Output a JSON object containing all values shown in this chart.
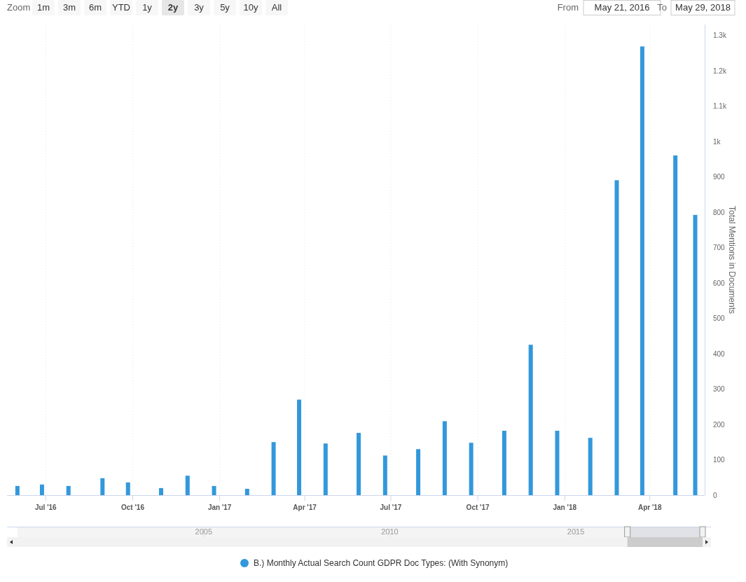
{
  "chart_data": {
    "type": "bar",
    "x": [
      "2016-06-01",
      "2016-06-27",
      "2016-07-25",
      "2016-08-30",
      "2016-09-26",
      "2016-10-31",
      "2016-11-28",
      "2016-12-26",
      "2017-01-30",
      "2017-02-27",
      "2017-03-26",
      "2017-04-23",
      "2017-05-28",
      "2017-06-25",
      "2017-07-30",
      "2017-08-27",
      "2017-09-24",
      "2017-10-29",
      "2017-11-26",
      "2017-12-24",
      "2018-01-28",
      "2018-02-25",
      "2018-03-24",
      "2018-04-28",
      "2018-05-19"
    ],
    "series": [
      {
        "name": "B.) Monthly Actual Search Count GDPR Doc Types: (With Synonym)",
        "color": "#3398db",
        "values": [
          26,
          30,
          26,
          48,
          36,
          20,
          55,
          26,
          18,
          150,
          270,
          146,
          176,
          112,
          130,
          209,
          148,
          182,
          425,
          182,
          162,
          890,
          1268,
          960,
          792
        ]
      }
    ],
    "xlim": [
      "2016-05-21",
      "2018-05-29"
    ],
    "xticks": [
      {
        "value": "2016-07-01",
        "label": "Jul '16"
      },
      {
        "value": "2016-10-01",
        "label": "Oct '16"
      },
      {
        "value": "2017-01-01",
        "label": "Jan '17"
      },
      {
        "value": "2017-04-01",
        "label": "Apr '17"
      },
      {
        "value": "2017-07-01",
        "label": "Jul '17"
      },
      {
        "value": "2017-10-01",
        "label": "Oct '17"
      },
      {
        "value": "2018-01-01",
        "label": "Jan '18"
      },
      {
        "value": "2018-04-01",
        "label": "Apr '18"
      }
    ],
    "ylim": [
      0,
      1330
    ],
    "yticks": [
      0,
      100,
      200,
      300,
      400,
      500,
      600,
      700,
      800,
      900,
      {
        "value": 1000,
        "label": "1k"
      },
      {
        "value": 1100,
        "label": "1.1k"
      },
      {
        "value": 1200,
        "label": "1.2k"
      },
      {
        "value": 1300,
        "label": "1.3k"
      }
    ],
    "ylabel": "Total Mentions in Documents",
    "x2lim": [
      "2000-01-01",
      "2018-05-29"
    ],
    "x2ticks": [
      {
        "value": "2005-01-01",
        "label": "2005"
      },
      {
        "value": "2010-01-01",
        "label": "2010"
      },
      {
        "value": "2015-01-01",
        "label": "2015"
      }
    ],
    "grid": "x",
    "legend": "bottom",
    "annotations": [
      "Zoom",
      "1m",
      "3m",
      "6m",
      "YTD",
      "1y",
      "2y",
      "3y",
      "5y",
      "10y",
      "All",
      "From",
      "May 21, 2016",
      "To",
      "May 29, 2018"
    ]
  }
}
